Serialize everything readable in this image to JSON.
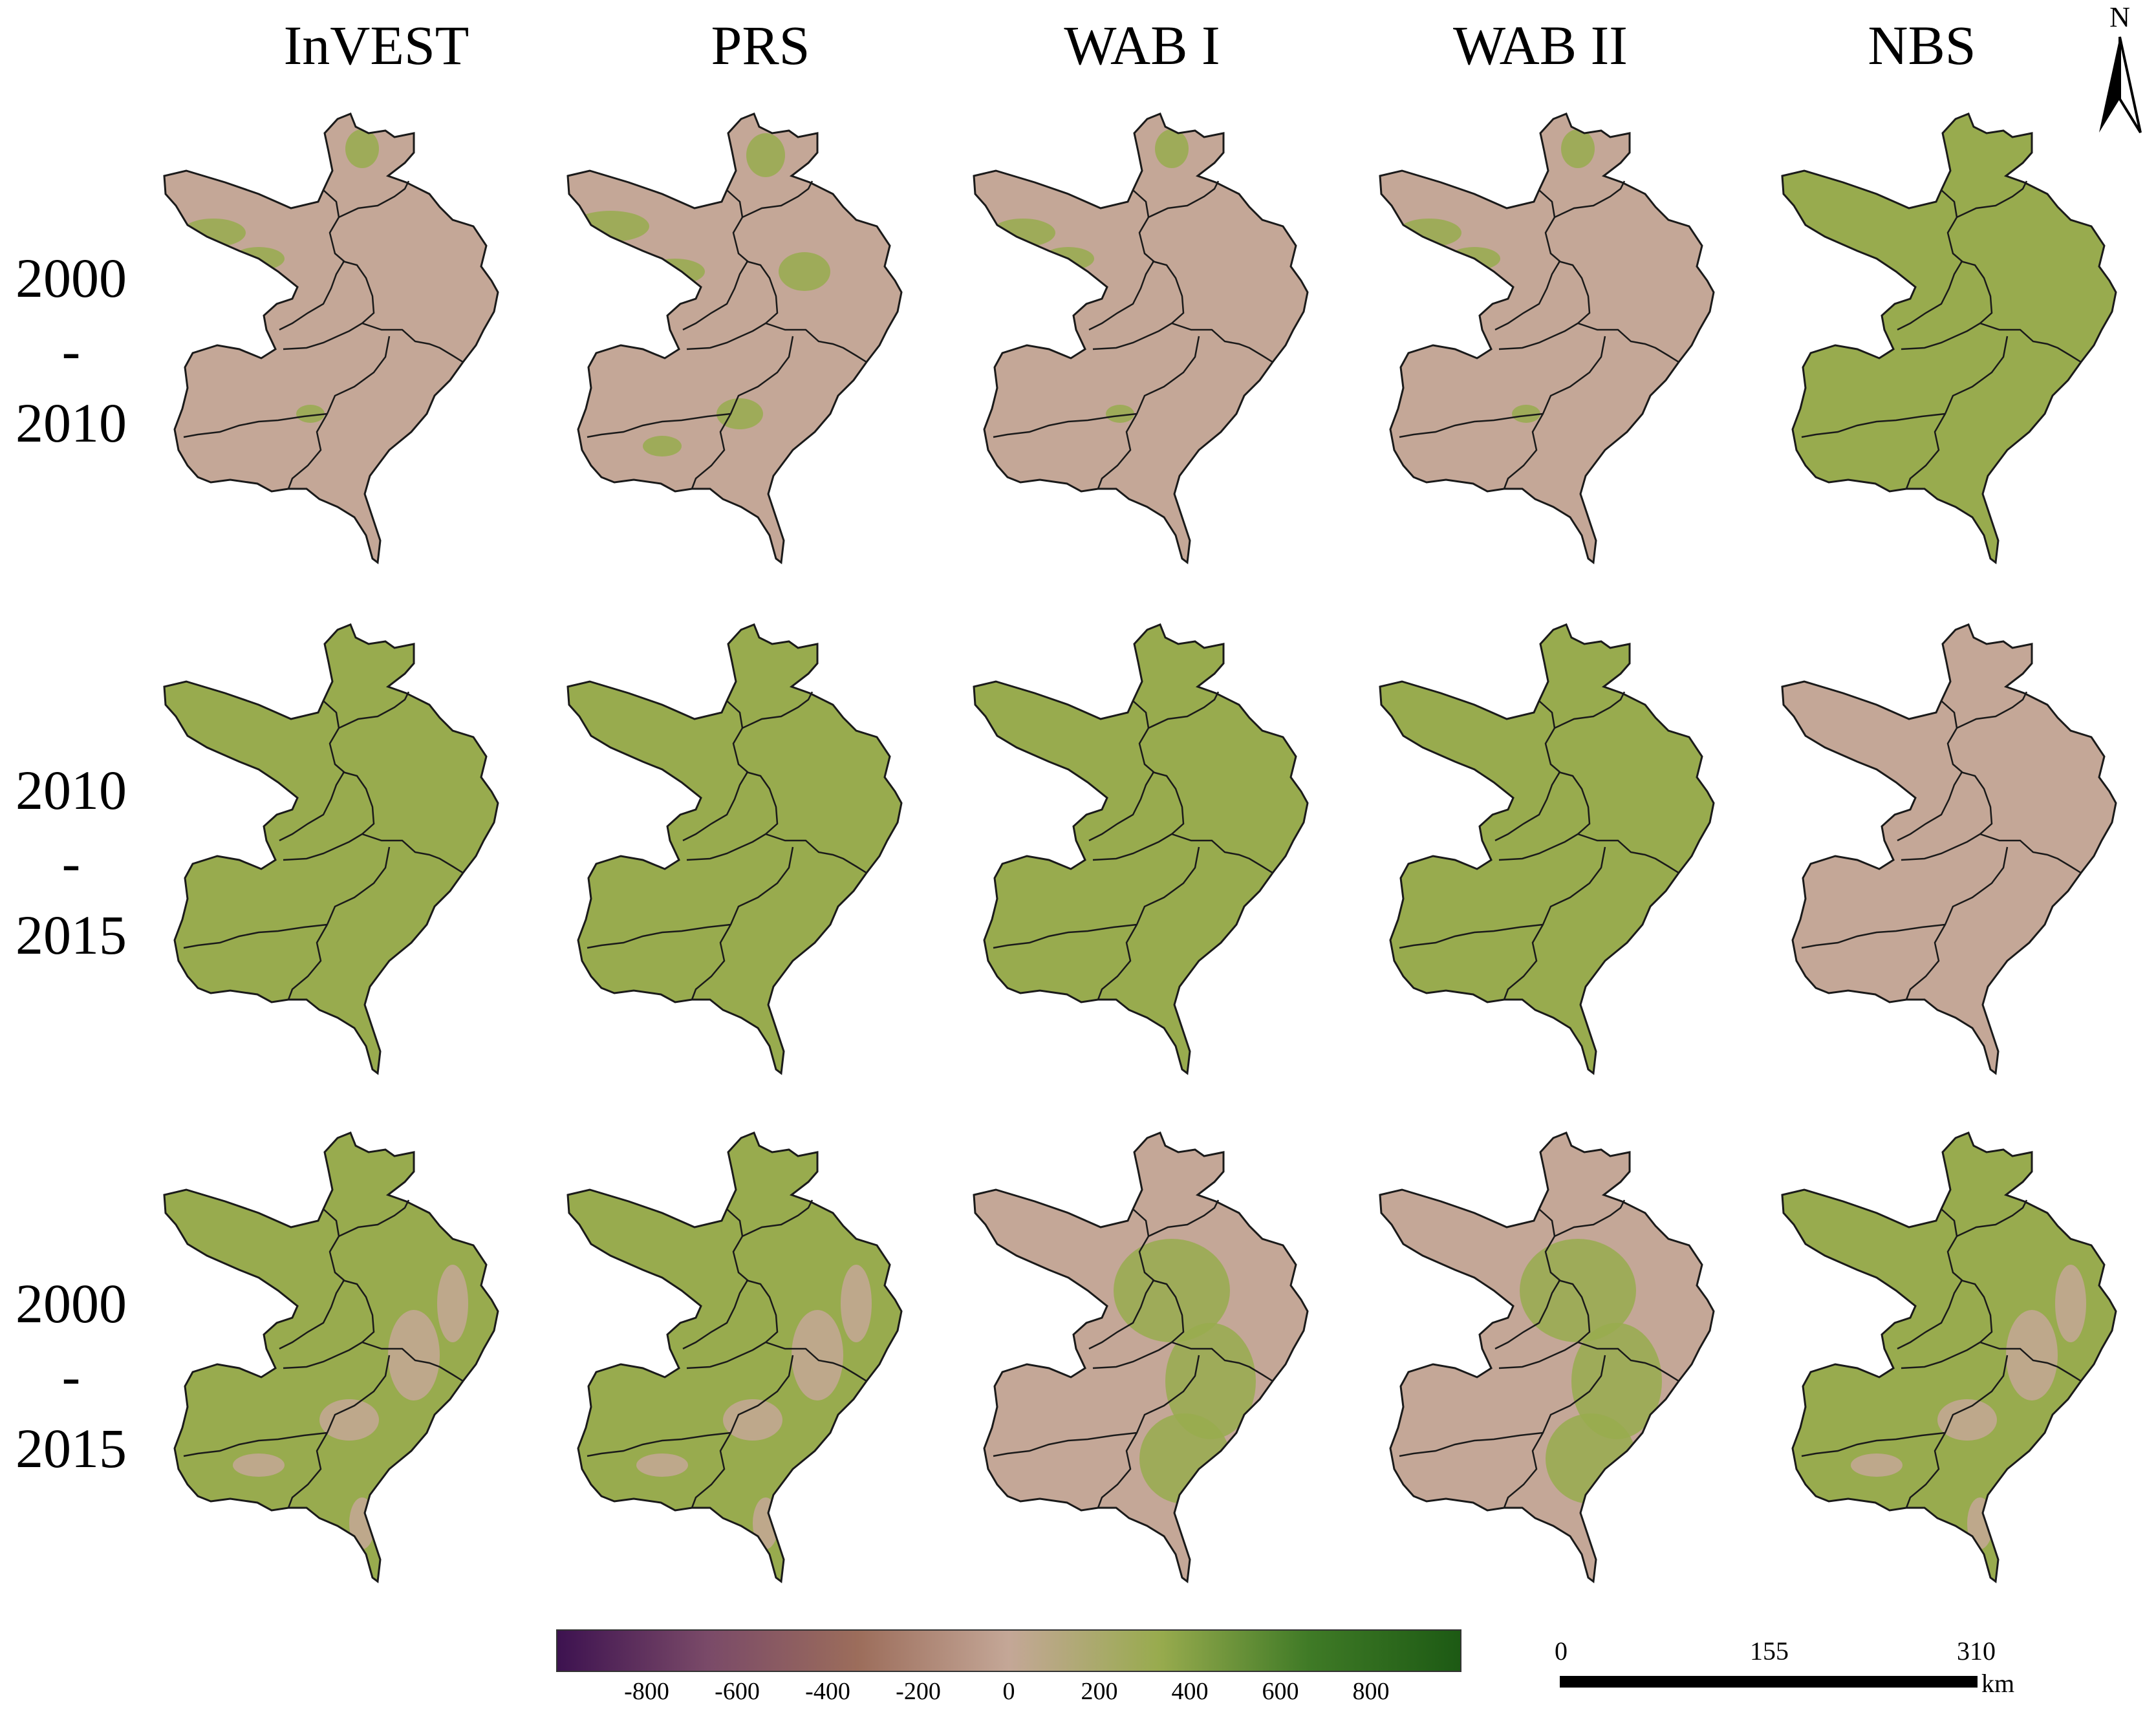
{
  "columns": [
    "InVEST",
    "PRS",
    "WAB I",
    "WAB II",
    "NBS"
  ],
  "rows": [
    {
      "start": "2000",
      "sep": "-",
      "end": "2010"
    },
    {
      "start": "2010",
      "sep": "-",
      "end": "2015"
    },
    {
      "start": "2000",
      "sep": "-",
      "end": "2015"
    }
  ],
  "colors": {
    "green": "#98ab4e",
    "pink": "#c4a797",
    "boundary": "#1a1a1a"
  },
  "map_fill": [
    [
      "pink-mostly",
      "pink-mixed",
      "pink-mostly",
      "pink-mostly",
      "green"
    ],
    [
      "green",
      "green",
      "green",
      "green",
      "pink"
    ],
    [
      "green-mixed",
      "green-mixed",
      "pink-center-green",
      "pink-center-green",
      "green-mixed"
    ]
  ],
  "north_arrow": {
    "label": "N"
  },
  "legend": {
    "ticks": [
      "-800",
      "-600",
      "-400",
      "-200",
      "0",
      "200",
      "400",
      "600",
      "800"
    ],
    "tick_values": [
      -800,
      -600,
      -400,
      -200,
      0,
      200,
      400,
      600,
      800
    ],
    "range": [
      -1000,
      1000
    ],
    "gradient": [
      "#3d1250",
      "#7a4a68",
      "#9c6d5b",
      "#c4a797",
      "#98ab4e",
      "#3f7a26",
      "#1d5a14"
    ]
  },
  "scalebar": {
    "labels": [
      "0",
      "155",
      "310"
    ],
    "unit": "km"
  }
}
